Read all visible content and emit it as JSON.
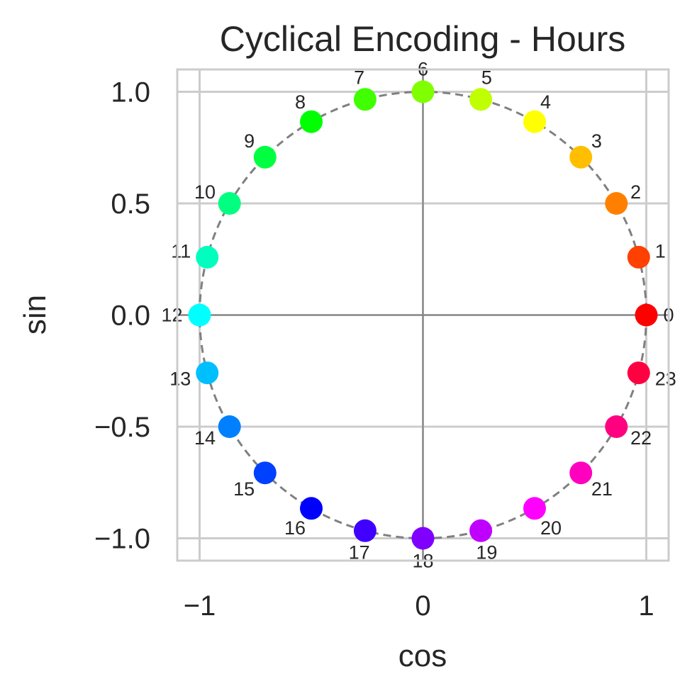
{
  "chart_data": {
    "type": "scatter",
    "title": "Cyclical Encoding - Hours",
    "xlabel": "cos",
    "ylabel": "sin",
    "xlim": [
      -1.1,
      1.1
    ],
    "ylim": [
      -1.1,
      1.1
    ],
    "x_ticks": [
      -1,
      0,
      1
    ],
    "x_tick_labels": [
      "−1",
      "0",
      "1"
    ],
    "y_ticks": [
      -1.0,
      -0.5,
      0.0,
      0.5,
      1.0
    ],
    "y_tick_labels": [
      "−1.0",
      "−0.5",
      "0.0",
      "0.5",
      "1.0"
    ],
    "grid": true,
    "reference_circle": {
      "radius": 1,
      "style": "dashed",
      "color": "#808080"
    },
    "reference_lines": {
      "x": 0,
      "y": 0,
      "color": "#808080"
    },
    "points": [
      {
        "label": "0",
        "x": 1.0,
        "y": 0.0,
        "color": "#ff0000"
      },
      {
        "label": "1",
        "x": 0.966,
        "y": 0.259,
        "color": "#ff4000"
      },
      {
        "label": "2",
        "x": 0.866,
        "y": 0.5,
        "color": "#ff8000"
      },
      {
        "label": "3",
        "x": 0.707,
        "y": 0.707,
        "color": "#ffbf00"
      },
      {
        "label": "4",
        "x": 0.5,
        "y": 0.866,
        "color": "#ffff00"
      },
      {
        "label": "5",
        "x": 0.259,
        "y": 0.966,
        "color": "#bfff00"
      },
      {
        "label": "6",
        "x": 0.0,
        "y": 1.0,
        "color": "#80ff00"
      },
      {
        "label": "7",
        "x": -0.259,
        "y": 0.966,
        "color": "#40ff00"
      },
      {
        "label": "8",
        "x": -0.5,
        "y": 0.866,
        "color": "#00ff00"
      },
      {
        "label": "9",
        "x": -0.707,
        "y": 0.707,
        "color": "#00ff40"
      },
      {
        "label": "10",
        "x": -0.866,
        "y": 0.5,
        "color": "#00ff80"
      },
      {
        "label": "11",
        "x": -0.966,
        "y": 0.259,
        "color": "#00ffbf"
      },
      {
        "label": "12",
        "x": -1.0,
        "y": 0.0,
        "color": "#00ffff"
      },
      {
        "label": "13",
        "x": -0.966,
        "y": -0.259,
        "color": "#00bfff"
      },
      {
        "label": "14",
        "x": -0.866,
        "y": -0.5,
        "color": "#0080ff"
      },
      {
        "label": "15",
        "x": -0.707,
        "y": -0.707,
        "color": "#0040ff"
      },
      {
        "label": "16",
        "x": -0.5,
        "y": -0.866,
        "color": "#0000ff"
      },
      {
        "label": "17",
        "x": -0.259,
        "y": -0.966,
        "color": "#4000ff"
      },
      {
        "label": "18",
        "x": 0.0,
        "y": -1.0,
        "color": "#8000ff"
      },
      {
        "label": "19",
        "x": 0.259,
        "y": -0.966,
        "color": "#bf00ff"
      },
      {
        "label": "20",
        "x": 0.5,
        "y": -0.866,
        "color": "#ff00ff"
      },
      {
        "label": "21",
        "x": 0.707,
        "y": -0.707,
        "color": "#ff00bf"
      },
      {
        "label": "22",
        "x": 0.866,
        "y": -0.5,
        "color": "#ff0080"
      },
      {
        "label": "23",
        "x": 0.966,
        "y": -0.259,
        "color": "#ff0040"
      }
    ]
  }
}
